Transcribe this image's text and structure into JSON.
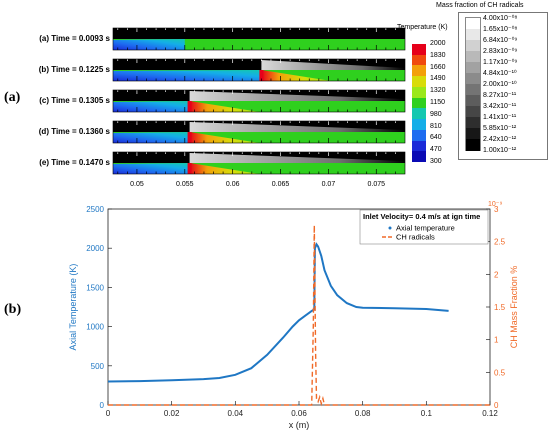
{
  "panel_a": {
    "label": "(a)",
    "strips": [
      {
        "label": "(a) Time = 0.0093 s",
        "flame": 0.0
      },
      {
        "label": "(b) Time = 0.1225 s",
        "flame": 0.063
      },
      {
        "label": "(c) Time = 0.1305 s",
        "flame": 0.0555
      },
      {
        "label": "(d) Time = 0.1360 s",
        "flame": 0.0555
      },
      {
        "label": "(e) Time = 0.1470 s",
        "flame": 0.0555
      }
    ],
    "x_ticks": [
      "0.05",
      "0.055",
      "0.06",
      "0.065",
      "0.07",
      "0.075"
    ],
    "x_tick_values": [
      0.05,
      0.055,
      0.06,
      0.065,
      0.07,
      0.075
    ],
    "x_range": [
      0.0475,
      0.078
    ],
    "temperature_legend": {
      "title": "Temperature (K)",
      "ticks": [
        "2000",
        "1830",
        "1660",
        "1490",
        "1320",
        "1150",
        "980",
        "810",
        "640",
        "470",
        "300"
      ],
      "colors": [
        "#e6001a",
        "#f04a0e",
        "#f3a00a",
        "#d8dc0a",
        "#9be81a",
        "#2fd01e",
        "#14c8b0",
        "#14aee8",
        "#1e6cf0",
        "#1a2ad8",
        "#0a0ab4"
      ]
    },
    "ch_legend": {
      "title": "Mass fraction of CH radicals",
      "ticks": [
        "4.00x10⁻⁰⁸",
        "1.65x10⁻⁰⁸",
        "6.84x10⁻⁰⁹",
        "2.83x10⁻⁰⁹",
        "1.17x10⁻⁰⁹",
        "4.84x10⁻¹⁰",
        "2.00x10⁻¹⁰",
        "8.27x10⁻¹¹",
        "3.42x10⁻¹¹",
        "1.41x10⁻¹¹",
        "5.85x10⁻¹²",
        "2.42x10⁻¹²",
        "1.00x10⁻¹²"
      ]
    }
  },
  "panel_b": {
    "label": "(b)",
    "chart_data": {
      "type": "line",
      "title": "",
      "xlabel": "x (m)",
      "ylabel": "Axial Temperature (K)",
      "y2label": "CH Mass Fraction %",
      "y2_exponent": "10⁻⁹",
      "xlim": [
        0,
        0.12
      ],
      "ylim": [
        0,
        2500
      ],
      "y2lim": [
        0,
        3
      ],
      "x_ticks": [
        "0",
        "0.02",
        "0.04",
        "0.06",
        "0.08",
        "0.1",
        "0.12"
      ],
      "y_ticks": [
        "0",
        "500",
        "1000",
        "1500",
        "2000",
        "2500"
      ],
      "y2_ticks": [
        "0",
        "0.5",
        "1",
        "1.5",
        "2",
        "2.5",
        "3"
      ],
      "legend_title": "Inlet Velocity= 0.4 m/s at ign time",
      "legend_position": "top-right",
      "series": [
        {
          "name": "Axial temperature",
          "color": "#1f77c4",
          "axis": "left",
          "x": [
            0,
            0.01,
            0.02,
            0.03,
            0.035,
            0.04,
            0.045,
            0.05,
            0.055,
            0.058,
            0.06,
            0.062,
            0.064,
            0.0648,
            0.065,
            0.0655,
            0.066,
            0.067,
            0.068,
            0.07,
            0.072,
            0.075,
            0.078,
            0.08,
            0.09,
            0.1,
            0.107
          ],
          "y": [
            300,
            305,
            315,
            330,
            345,
            385,
            470,
            640,
            860,
            1000,
            1080,
            1140,
            1200,
            1220,
            2000,
            2050,
            2020,
            1900,
            1720,
            1520,
            1400,
            1300,
            1250,
            1240,
            1235,
            1225,
            1200
          ]
        },
        {
          "name": "CH radicals",
          "color": "#f06a28",
          "axis": "right",
          "x": [
            0,
            0.064,
            0.0645,
            0.0648,
            0.0652,
            0.0655,
            0.066,
            0.0665,
            0.067,
            0.0675,
            0.068,
            0.07,
            0.12
          ],
          "y": [
            0,
            0,
            1.2,
            2.75,
            0.8,
            0.1,
            0.05,
            0.12,
            0.02,
            0.1,
            0,
            0,
            0
          ]
        }
      ]
    }
  }
}
